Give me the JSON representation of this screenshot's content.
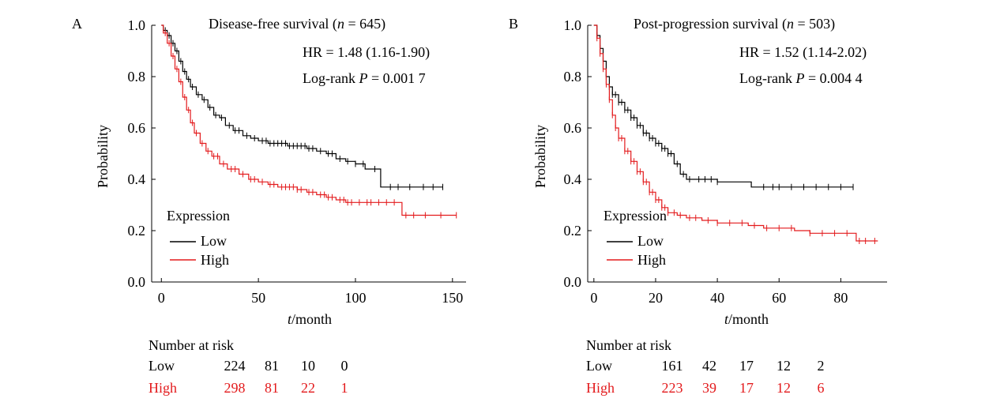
{
  "colors": {
    "low": "#000000",
    "high": "#e31a1c",
    "axis": "#000000"
  },
  "chart_data": [
    {
      "type": "line",
      "panel_label": "A",
      "title_prefix": "Disease-free survival (",
      "title_n_var": "n",
      "title_n_value": " = 645)",
      "hr_text": "HR = 1.48 (1.16-1.90)",
      "p_prefix": "Log-rank ",
      "p_var": "P",
      "p_value": " = 0.001 7",
      "xlabel_var": "t",
      "xlabel_rest": "/month",
      "ylabel": "Probability",
      "xlim": [
        -5,
        157
      ],
      "ylim": [
        0,
        1
      ],
      "xticks": [
        0,
        50,
        100,
        150
      ],
      "yticks": [
        0.0,
        0.2,
        0.4,
        0.6,
        0.8,
        1.0
      ],
      "ytick_labels": [
        "0.0",
        "0.2",
        "0.4",
        "0.6",
        "0.8",
        "1.0"
      ],
      "legend": {
        "title": "Expression",
        "items": [
          "Low",
          "High"
        ]
      },
      "series": [
        {
          "name": "Low",
          "color_key": "low",
          "points": [
            [
              0,
              1.0
            ],
            [
              1,
              0.98
            ],
            [
              3,
              0.96
            ],
            [
              5,
              0.93
            ],
            [
              7,
              0.9
            ],
            [
              9,
              0.86
            ],
            [
              11,
              0.82
            ],
            [
              13,
              0.79
            ],
            [
              15,
              0.76
            ],
            [
              18,
              0.73
            ],
            [
              21,
              0.71
            ],
            [
              24,
              0.68
            ],
            [
              27,
              0.65
            ],
            [
              30,
              0.64
            ],
            [
              33,
              0.61
            ],
            [
              37,
              0.59
            ],
            [
              42,
              0.57
            ],
            [
              46,
              0.56
            ],
            [
              50,
              0.55
            ],
            [
              55,
              0.54
            ],
            [
              60,
              0.54
            ],
            [
              65,
              0.53
            ],
            [
              70,
              0.53
            ],
            [
              75,
              0.52
            ],
            [
              80,
              0.51
            ],
            [
              85,
              0.5
            ],
            [
              90,
              0.48
            ],
            [
              95,
              0.47
            ],
            [
              100,
              0.46
            ],
            [
              105,
              0.44
            ],
            [
              113,
              0.44
            ],
            [
              113,
              0.37
            ],
            [
              125,
              0.37
            ],
            [
              145,
              0.37
            ]
          ],
          "censored": [
            2,
            4,
            6,
            8,
            10,
            12,
            14,
            16,
            19,
            22,
            25,
            28,
            31,
            35,
            38,
            40,
            44,
            48,
            52,
            54,
            56,
            58,
            60,
            62,
            64,
            66,
            68,
            70,
            72,
            74,
            76,
            78,
            82,
            86,
            88,
            92,
            96,
            100,
            104,
            110,
            118,
            122,
            128,
            135,
            140,
            145
          ]
        },
        {
          "name": "High",
          "color_key": "high",
          "points": [
            [
              0,
              1.0
            ],
            [
              1,
              0.97
            ],
            [
              3,
              0.93
            ],
            [
              5,
              0.88
            ],
            [
              7,
              0.83
            ],
            [
              9,
              0.78
            ],
            [
              11,
              0.72
            ],
            [
              13,
              0.67
            ],
            [
              15,
              0.62
            ],
            [
              17,
              0.58
            ],
            [
              20,
              0.54
            ],
            [
              23,
              0.51
            ],
            [
              26,
              0.49
            ],
            [
              30,
              0.46
            ],
            [
              34,
              0.44
            ],
            [
              40,
              0.42
            ],
            [
              45,
              0.4
            ],
            [
              50,
              0.39
            ],
            [
              55,
              0.38
            ],
            [
              60,
              0.37
            ],
            [
              65,
              0.37
            ],
            [
              70,
              0.36
            ],
            [
              75,
              0.35
            ],
            [
              80,
              0.34
            ],
            [
              85,
              0.33
            ],
            [
              90,
              0.32
            ],
            [
              95,
              0.31
            ],
            [
              100,
              0.31
            ],
            [
              110,
              0.31
            ],
            [
              124,
              0.31
            ],
            [
              124,
              0.26
            ],
            [
              140,
              0.26
            ],
            [
              152,
              0.26
            ]
          ],
          "censored": [
            2,
            4,
            6,
            8,
            10,
            12,
            14,
            16,
            18,
            21,
            24,
            27,
            29,
            32,
            36,
            38,
            42,
            46,
            48,
            52,
            56,
            58,
            62,
            64,
            66,
            68,
            70,
            72,
            76,
            78,
            82,
            84,
            86,
            88,
            92,
            94,
            96,
            98,
            102,
            106,
            108,
            112,
            116,
            120,
            126,
            130,
            136,
            144,
            152
          ]
        }
      ],
      "risk_table": {
        "header": "Number at risk",
        "rows": [
          {
            "name": "Low",
            "color_key": "low",
            "values": [
              "224",
              "81",
              "10",
              "0"
            ]
          },
          {
            "name": "High",
            "color_key": "high",
            "values": [
              "298",
              "81",
              "22",
              "1"
            ]
          }
        ]
      }
    },
    {
      "type": "line",
      "panel_label": "B",
      "title_prefix": "Post-progression survival (",
      "title_n_var": "n",
      "title_n_value": " = 503)",
      "hr_text": "HR = 1.52 (1.14-2.02)",
      "p_prefix": "Log-rank ",
      "p_var": "P",
      "p_value": " = 0.004 4",
      "xlabel_var": "t",
      "xlabel_rest": "/month",
      "ylabel": "Probability",
      "xlim": [
        -2,
        95
      ],
      "ylim": [
        0,
        1
      ],
      "xticks": [
        0,
        20,
        40,
        60,
        80
      ],
      "yticks": [
        0.0,
        0.2,
        0.4,
        0.6,
        0.8,
        1.0
      ],
      "ytick_labels": [
        "0.0",
        "0.2",
        "0.4",
        "0.6",
        "0.8",
        "1.0"
      ],
      "legend": {
        "title": "Expression",
        "items": [
          "Low",
          "High"
        ]
      },
      "series": [
        {
          "name": "Low",
          "color_key": "low",
          "points": [
            [
              0,
              1.0
            ],
            [
              1,
              0.96
            ],
            [
              2,
              0.91
            ],
            [
              3,
              0.86
            ],
            [
              4,
              0.8
            ],
            [
              5,
              0.76
            ],
            [
              6,
              0.73
            ],
            [
              8,
              0.7
            ],
            [
              10,
              0.67
            ],
            [
              12,
              0.64
            ],
            [
              14,
              0.61
            ],
            [
              16,
              0.58
            ],
            [
              18,
              0.56
            ],
            [
              20,
              0.54
            ],
            [
              22,
              0.52
            ],
            [
              24,
              0.5
            ],
            [
              26,
              0.46
            ],
            [
              28,
              0.42
            ],
            [
              30,
              0.4
            ],
            [
              40,
              0.39
            ],
            [
              50,
              0.39
            ],
            [
              51,
              0.37
            ],
            [
              70,
              0.37
            ],
            [
              84,
              0.37
            ]
          ],
          "censored": [
            1,
            2,
            3,
            4,
            5,
            6,
            7,
            8,
            9,
            10,
            11,
            12,
            13,
            14,
            15,
            16,
            17,
            18,
            19,
            20,
            21,
            22,
            23,
            24,
            25,
            27,
            29,
            31,
            34,
            36,
            38,
            40,
            55,
            58,
            60,
            64,
            68,
            72,
            76,
            80,
            84
          ]
        },
        {
          "name": "High",
          "color_key": "high",
          "points": [
            [
              0,
              1.0
            ],
            [
              1,
              0.95
            ],
            [
              2,
              0.89
            ],
            [
              3,
              0.83
            ],
            [
              4,
              0.77
            ],
            [
              5,
              0.71
            ],
            [
              6,
              0.65
            ],
            [
              7,
              0.6
            ],
            [
              8,
              0.56
            ],
            [
              10,
              0.51
            ],
            [
              12,
              0.47
            ],
            [
              14,
              0.43
            ],
            [
              16,
              0.39
            ],
            [
              18,
              0.35
            ],
            [
              20,
              0.32
            ],
            [
              22,
              0.29
            ],
            [
              24,
              0.27
            ],
            [
              27,
              0.26
            ],
            [
              30,
              0.25
            ],
            [
              35,
              0.24
            ],
            [
              40,
              0.23
            ],
            [
              45,
              0.23
            ],
            [
              50,
              0.22
            ],
            [
              55,
              0.21
            ],
            [
              60,
              0.21
            ],
            [
              65,
              0.2
            ],
            [
              70,
              0.19
            ],
            [
              80,
              0.19
            ],
            [
              84,
              0.19
            ],
            [
              85,
              0.16
            ],
            [
              92,
              0.16
            ]
          ],
          "censored": [
            1,
            2,
            3,
            4,
            5,
            6,
            7,
            8,
            9,
            10,
            11,
            12,
            13,
            14,
            15,
            16,
            17,
            18,
            19,
            20,
            21,
            22,
            23,
            24,
            26,
            28,
            31,
            33,
            37,
            40,
            44,
            48,
            52,
            56,
            60,
            64,
            70,
            74,
            78,
            82,
            86,
            88,
            91
          ]
        }
      ],
      "risk_table": {
        "header": "Number at risk",
        "rows": [
          {
            "name": "Low",
            "color_key": "low",
            "values": [
              "161",
              "42",
              "17",
              "12",
              "2"
            ]
          },
          {
            "name": "High",
            "color_key": "high",
            "values": [
              "223",
              "39",
              "17",
              "12",
              "6"
            ]
          }
        ]
      }
    }
  ]
}
